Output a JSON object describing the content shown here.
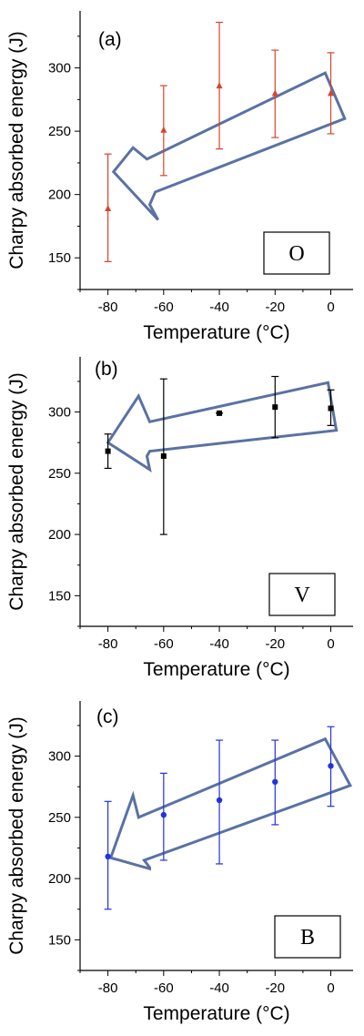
{
  "chart_data": [
    {
      "type": "scatter",
      "panel_label": "(a)",
      "box_label": "O",
      "xlabel": "Temperature (°C)",
      "ylabel": "Charpy absorbed energy (J)",
      "xlim": [
        -90,
        8
      ],
      "ylim": [
        125,
        345
      ],
      "xticks": [
        -80,
        -60,
        -40,
        -20,
        0
      ],
      "yticks": [
        150,
        200,
        250,
        300
      ],
      "color": "#d9442a",
      "marker": "triangle",
      "series": [
        {
          "x": [
            -80,
            -60,
            -40,
            -20,
            0
          ],
          "y": [
            189,
            251,
            286,
            280,
            280
          ],
          "err_low": [
            147,
            215,
            236,
            245,
            248
          ],
          "err_high": [
            232,
            286,
            336,
            314,
            312
          ]
        }
      ]
    },
    {
      "type": "scatter",
      "panel_label": "(b)",
      "box_label": "V",
      "xlabel": "Temperature (°C)",
      "ylabel": "Charpy absorbed energy (J)",
      "xlim": [
        -90,
        8
      ],
      "ylim": [
        125,
        345
      ],
      "xticks": [
        -80,
        -60,
        -40,
        -20,
        0
      ],
      "yticks": [
        150,
        200,
        250,
        300
      ],
      "color": "#000000",
      "marker": "square",
      "series": [
        {
          "x": [
            -80,
            -60,
            -40,
            -20,
            0
          ],
          "y": [
            268,
            264,
            299,
            304,
            303
          ],
          "err_low": [
            254,
            200,
            299,
            279,
            289
          ],
          "err_high": [
            282,
            327,
            299,
            329,
            318
          ]
        }
      ]
    },
    {
      "type": "scatter",
      "panel_label": "(c)",
      "box_label": "B",
      "xlabel": "Temperature (°C)",
      "ylabel": "Charpy absorbed energy (J)",
      "xlim": [
        -90,
        8
      ],
      "ylim": [
        125,
        345
      ],
      "xticks": [
        -80,
        -60,
        -40,
        -20,
        0
      ],
      "yticks": [
        150,
        200,
        250,
        300
      ],
      "color": "#2233dd",
      "marker": "circle",
      "series": [
        {
          "x": [
            -80,
            -60,
            -40,
            -20,
            0
          ],
          "y": [
            218,
            252,
            264,
            279,
            292
          ],
          "err_low": [
            175,
            215,
            212,
            244,
            259
          ],
          "err_high": [
            263,
            286,
            313,
            313,
            324
          ]
        }
      ]
    }
  ],
  "colors": {
    "arrow": "#5a72a3",
    "axis": "#000000"
  }
}
